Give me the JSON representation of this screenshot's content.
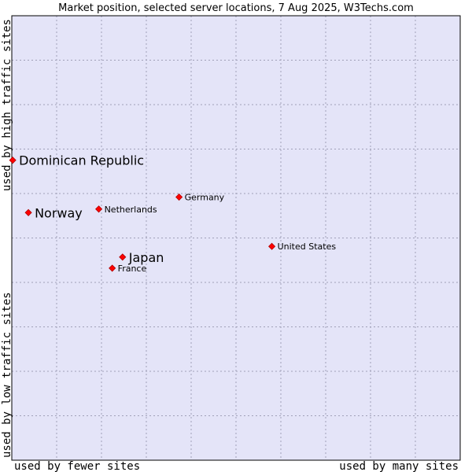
{
  "colors": {
    "plot_background": "#e4e4f8",
    "plot_border": "#000000",
    "marker": "#ff0000",
    "marker_edge": "#b00000",
    "grid": "#a0a0b8"
  },
  "chart_data": {
    "type": "scatter",
    "title": "Market position, selected server locations, 7 Aug 2025, W3Techs.com",
    "xlabel_left": "used by fewer sites",
    "xlabel_right": "used by many sites",
    "ylabel_bottom": "used by low traffic sites",
    "ylabel_top": "used by high traffic sites",
    "xlim": [
      0,
      100
    ],
    "ylim": [
      0,
      100
    ],
    "grid": true,
    "grid_divisions": 10,
    "points": [
      {
        "label": "Dominican Republic",
        "x": 0.2,
        "y": 67.5,
        "emphasis": true
      },
      {
        "label": "Norway",
        "x": 3.7,
        "y": 55.7,
        "emphasis": true
      },
      {
        "label": "Netherlands",
        "x": 19.4,
        "y": 56.5,
        "emphasis": false
      },
      {
        "label": "Germany",
        "x": 37.3,
        "y": 59.2,
        "emphasis": false
      },
      {
        "label": "Japan",
        "x": 24.7,
        "y": 45.7,
        "emphasis": true
      },
      {
        "label": "France",
        "x": 22.4,
        "y": 43.2,
        "emphasis": false
      },
      {
        "label": "United States",
        "x": 58.0,
        "y": 48.1,
        "emphasis": false
      }
    ]
  }
}
